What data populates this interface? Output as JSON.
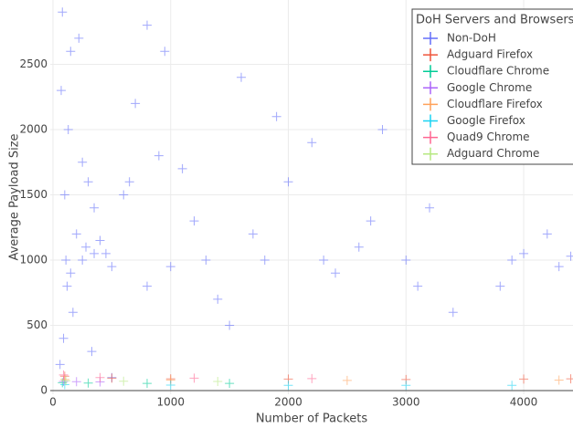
{
  "chart_data": {
    "type": "scatter",
    "xlabel": "Number of Packets",
    "ylabel": "Average Payload Size",
    "legend_title": "DoH Servers and Browsers",
    "legend": "upper right",
    "xlim": [
      -23,
      4419
    ],
    "ylim": [
      -28,
      2993
    ],
    "xticks": [
      0,
      1000,
      2000,
      3000,
      4000
    ],
    "yticks": [
      0,
      500,
      1000,
      1500,
      2000,
      2500
    ],
    "grid": true,
    "series": [
      {
        "name": "Non-DoH",
        "color": "#636efa",
        "x": [
          60,
          80,
          100,
          120,
          150,
          200,
          250,
          300,
          350,
          400,
          70,
          90,
          110,
          130,
          170,
          220,
          280,
          330,
          450,
          500,
          600,
          700,
          800,
          900,
          1000,
          1200,
          1400,
          1600,
          1800,
          2000,
          2200,
          2400,
          2600,
          2800,
          3000,
          3200,
          3400,
          3600,
          3800,
          4000,
          4200,
          4400,
          500,
          800,
          1100,
          1500,
          1900,
          2300,
          2700,
          3100,
          3500,
          3900,
          4300,
          150,
          250,
          350,
          650,
          950,
          1300,
          1700
        ],
        "values": [
          200,
          2900,
          1500,
          800,
          2600,
          1200,
          1750,
          1600,
          1400,
          1150,
          2300,
          400,
          1000,
          2000,
          600,
          2700,
          1100,
          300,
          1050,
          950,
          1500,
          2200,
          800,
          1800,
          950,
          1300,
          700,
          2400,
          1000,
          1600,
          1900,
          900,
          1100,
          2000,
          1000,
          1400,
          600,
          2500,
          800,
          1050,
          1200,
          1030,
          100,
          2800,
          1700,
          500,
          2100,
          1000,
          1300,
          800,
          1800,
          1000,
          950,
          900,
          1000,
          1050,
          1600,
          2600,
          1000,
          1200
        ]
      },
      {
        "name": "Adguard Firefox",
        "color": "#ef553b",
        "x": [
          100,
          500,
          1000,
          2000,
          3000,
          4000,
          4400
        ],
        "values": [
          110,
          95,
          90,
          88,
          85,
          88,
          90
        ]
      },
      {
        "name": "Cloudflare Chrome",
        "color": "#00cc96",
        "x": [
          80,
          300,
          800,
          1500
        ],
        "values": [
          60,
          58,
          55,
          55
        ]
      },
      {
        "name": "Google Chrome",
        "color": "#ab63fa",
        "x": [
          90,
          200,
          400
        ],
        "values": [
          70,
          68,
          66
        ]
      },
      {
        "name": "Cloudflare Firefox",
        "color": "#ffa15a",
        "x": [
          100,
          1000,
          2500,
          4300
        ],
        "values": [
          85,
          80,
          78,
          80
        ]
      },
      {
        "name": "Google Firefox",
        "color": "#19d3f3",
        "x": [
          100,
          1000,
          2000,
          3000,
          3900
        ],
        "values": [
          45,
          42,
          40,
          40,
          40
        ]
      },
      {
        "name": "Quad9 Chrome",
        "color": "#ff6692",
        "x": [
          90,
          400,
          1200,
          2200
        ],
        "values": [
          120,
          100,
          95,
          92
        ]
      },
      {
        "name": "Adguard Chrome",
        "color": "#b6e880",
        "x": [
          110,
          600,
          1400
        ],
        "values": [
          75,
          72,
          70
        ]
      }
    ]
  }
}
